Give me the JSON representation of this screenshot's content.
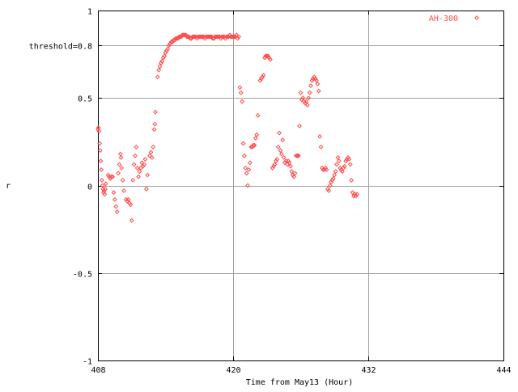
{
  "chart_data": {
    "type": "scatter",
    "xlabel": "Time from May13 (Hour)",
    "ylabel": "r",
    "xlim": [
      408,
      444
    ],
    "ylim": [
      -1,
      1
    ],
    "xticks": [
      408,
      420,
      432,
      444
    ],
    "yticks": [
      {
        "value": -1,
        "label": "-1"
      },
      {
        "value": -0.5,
        "label": "-0.5"
      },
      {
        "value": 0,
        "label": "0"
      },
      {
        "value": 0.5,
        "label": "0.5"
      },
      {
        "value": 0.8,
        "label": "threshold=0.8"
      },
      {
        "value": 1,
        "label": "1"
      }
    ],
    "grid": true,
    "legend_position": "top-right",
    "series": [
      {
        "name": "AH-300",
        "color": "#ff4a4a",
        "marker": "diamond",
        "points": [
          [
            408.0,
            0.32
          ],
          [
            408.05,
            0.33
          ],
          [
            408.1,
            0.31
          ],
          [
            408.15,
            0.24
          ],
          [
            408.2,
            0.2
          ],
          [
            408.25,
            0.14
          ],
          [
            408.3,
            0.09
          ],
          [
            408.35,
            0.03
          ],
          [
            408.4,
            0.0
          ],
          [
            408.45,
            -0.02
          ],
          [
            408.5,
            -0.04
          ],
          [
            408.55,
            -0.03
          ],
          [
            408.6,
            -0.05
          ],
          [
            408.65,
            -0.02
          ],
          [
            408.7,
            0.01
          ],
          [
            408.9,
            0.06
          ],
          [
            409.0,
            0.05
          ],
          [
            409.1,
            0.04
          ],
          [
            409.2,
            0.05
          ],
          [
            409.3,
            0.05
          ],
          [
            409.4,
            -0.04
          ],
          [
            409.5,
            -0.08
          ],
          [
            409.6,
            -0.12
          ],
          [
            409.7,
            -0.15
          ],
          [
            409.8,
            0.07
          ],
          [
            409.9,
            0.12
          ],
          [
            410.0,
            0.18
          ],
          [
            410.05,
            0.16
          ],
          [
            410.1,
            0.1
          ],
          [
            410.2,
            0.03
          ],
          [
            410.3,
            -0.03
          ],
          [
            410.5,
            -0.08
          ],
          [
            410.6,
            -0.09
          ],
          [
            410.7,
            -0.08
          ],
          [
            410.8,
            -0.1
          ],
          [
            410.9,
            -0.11
          ],
          [
            411.0,
            -0.2
          ],
          [
            411.1,
            0.03
          ],
          [
            411.2,
            0.12
          ],
          [
            411.3,
            0.17
          ],
          [
            411.4,
            0.22
          ],
          [
            411.5,
            0.1
          ],
          [
            411.6,
            0.05
          ],
          [
            411.7,
            0.08
          ],
          [
            411.8,
            0.1
          ],
          [
            411.9,
            0.13
          ],
          [
            412.0,
            0.11
          ],
          [
            412.1,
            0.12
          ],
          [
            412.2,
            0.15
          ],
          [
            412.3,
            -0.02
          ],
          [
            412.4,
            0.06
          ],
          [
            412.6,
            0.17
          ],
          [
            412.7,
            0.19
          ],
          [
            412.8,
            0.16
          ],
          [
            412.9,
            0.22
          ],
          [
            413.0,
            0.32
          ],
          [
            413.05,
            0.35
          ],
          [
            413.1,
            0.42
          ],
          [
            413.3,
            0.62
          ],
          [
            413.4,
            0.66
          ],
          [
            413.5,
            0.68
          ],
          [
            413.6,
            0.7
          ],
          [
            413.7,
            0.71
          ],
          [
            413.8,
            0.73
          ],
          [
            413.9,
            0.74
          ],
          [
            414.0,
            0.76
          ],
          [
            414.1,
            0.77
          ],
          [
            414.2,
            0.78
          ],
          [
            414.3,
            0.8
          ],
          [
            414.4,
            0.81
          ],
          [
            414.5,
            0.82
          ],
          [
            414.6,
            0.82
          ],
          [
            414.7,
            0.83
          ],
          [
            414.8,
            0.83
          ],
          [
            414.9,
            0.84
          ],
          [
            415.0,
            0.84
          ],
          [
            415.1,
            0.84
          ],
          [
            415.2,
            0.85
          ],
          [
            415.3,
            0.85
          ],
          [
            415.4,
            0.85
          ],
          [
            415.5,
            0.86
          ],
          [
            415.6,
            0.86
          ],
          [
            415.7,
            0.86
          ],
          [
            415.8,
            0.86
          ],
          [
            415.9,
            0.85
          ],
          [
            416.0,
            0.85
          ],
          [
            416.1,
            0.85
          ],
          [
            416.2,
            0.84
          ],
          [
            416.3,
            0.84
          ],
          [
            416.4,
            0.85
          ],
          [
            416.5,
            0.85
          ],
          [
            416.6,
            0.85
          ],
          [
            416.7,
            0.85
          ],
          [
            416.8,
            0.84
          ],
          [
            416.9,
            0.85
          ],
          [
            417.0,
            0.85
          ],
          [
            417.1,
            0.85
          ],
          [
            417.2,
            0.85
          ],
          [
            417.3,
            0.85
          ],
          [
            417.4,
            0.85
          ],
          [
            417.5,
            0.84
          ],
          [
            417.6,
            0.85
          ],
          [
            417.7,
            0.85
          ],
          [
            417.8,
            0.85
          ],
          [
            417.9,
            0.85
          ],
          [
            418.0,
            0.85
          ],
          [
            418.1,
            0.85
          ],
          [
            418.2,
            0.84
          ],
          [
            418.3,
            0.84
          ],
          [
            418.4,
            0.85
          ],
          [
            418.5,
            0.85
          ],
          [
            418.6,
            0.85
          ],
          [
            418.7,
            0.85
          ],
          [
            418.8,
            0.85
          ],
          [
            418.9,
            0.84
          ],
          [
            419.0,
            0.85
          ],
          [
            419.1,
            0.85
          ],
          [
            419.2,
            0.85
          ],
          [
            419.3,
            0.84
          ],
          [
            419.4,
            0.85
          ],
          [
            419.5,
            0.85
          ],
          [
            419.6,
            0.85
          ],
          [
            419.7,
            0.86
          ],
          [
            419.8,
            0.85
          ],
          [
            419.9,
            0.85
          ],
          [
            420.0,
            0.85
          ],
          [
            420.1,
            0.85
          ],
          [
            420.2,
            0.85
          ],
          [
            420.3,
            0.86
          ],
          [
            420.4,
            0.84
          ],
          [
            420.5,
            0.85
          ],
          [
            420.6,
            0.56
          ],
          [
            420.7,
            0.53
          ],
          [
            420.8,
            0.48
          ],
          [
            420.9,
            0.24
          ],
          [
            421.0,
            0.17
          ],
          [
            421.1,
            0.1
          ],
          [
            421.2,
            0.07
          ],
          [
            421.3,
            0.0
          ],
          [
            421.4,
            0.09
          ],
          [
            421.5,
            0.13
          ],
          [
            421.6,
            0.22
          ],
          [
            421.7,
            0.22
          ],
          [
            421.8,
            0.23
          ],
          [
            421.9,
            0.23
          ],
          [
            422.0,
            0.27
          ],
          [
            422.1,
            0.29
          ],
          [
            422.2,
            0.4
          ],
          [
            422.4,
            0.6
          ],
          [
            422.5,
            0.61
          ],
          [
            422.6,
            0.62
          ],
          [
            422.7,
            0.63
          ],
          [
            422.8,
            0.73
          ],
          [
            422.9,
            0.74
          ],
          [
            423.0,
            0.74
          ],
          [
            423.1,
            0.74
          ],
          [
            423.2,
            0.73
          ],
          [
            423.3,
            0.72
          ],
          [
            423.5,
            0.1
          ],
          [
            423.6,
            0.11
          ],
          [
            423.7,
            0.12
          ],
          [
            423.8,
            0.14
          ],
          [
            423.9,
            0.15
          ],
          [
            424.0,
            0.22
          ],
          [
            424.1,
            0.3
          ],
          [
            424.2,
            0.2
          ],
          [
            424.3,
            0.18
          ],
          [
            424.4,
            0.26
          ],
          [
            424.5,
            0.16
          ],
          [
            424.6,
            0.13
          ],
          [
            424.7,
            0.14
          ],
          [
            424.8,
            0.12
          ],
          [
            424.9,
            0.14
          ],
          [
            425.0,
            0.13
          ],
          [
            425.1,
            0.11
          ],
          [
            425.2,
            0.08
          ],
          [
            425.3,
            0.06
          ],
          [
            425.4,
            0.05
          ],
          [
            425.5,
            0.07
          ],
          [
            425.6,
            0.17
          ],
          [
            425.7,
            0.17
          ],
          [
            425.8,
            0.17
          ],
          [
            425.9,
            0.34
          ],
          [
            426.0,
            0.53
          ],
          [
            426.1,
            0.49
          ],
          [
            426.2,
            0.5
          ],
          [
            426.3,
            0.48
          ],
          [
            426.4,
            0.47
          ],
          [
            426.5,
            0.48
          ],
          [
            426.6,
            0.46
          ],
          [
            426.7,
            0.5
          ],
          [
            426.8,
            0.53
          ],
          [
            426.9,
            0.57
          ],
          [
            427.0,
            0.6
          ],
          [
            427.1,
            0.61
          ],
          [
            427.2,
            0.62
          ],
          [
            427.3,
            0.61
          ],
          [
            427.4,
            0.6
          ],
          [
            427.5,
            0.58
          ],
          [
            427.6,
            0.54
          ],
          [
            427.7,
            0.28
          ],
          [
            427.8,
            0.22
          ],
          [
            427.9,
            0.1
          ],
          [
            428.0,
            0.09
          ],
          [
            428.1,
            0.09
          ],
          [
            428.2,
            0.1
          ],
          [
            428.3,
            0.09
          ],
          [
            428.4,
            -0.02
          ],
          [
            428.5,
            -0.03
          ],
          [
            428.6,
            0.0
          ],
          [
            428.7,
            0.02
          ],
          [
            428.8,
            0.03
          ],
          [
            428.9,
            0.04
          ],
          [
            429.0,
            0.06
          ],
          [
            429.1,
            0.08
          ],
          [
            429.2,
            0.12
          ],
          [
            429.3,
            0.16
          ],
          [
            429.4,
            0.14
          ],
          [
            429.5,
            0.1
          ],
          [
            429.6,
            0.09
          ],
          [
            429.7,
            0.08
          ],
          [
            429.8,
            0.1
          ],
          [
            429.9,
            0.11
          ],
          [
            430.0,
            0.14
          ],
          [
            430.1,
            0.15
          ],
          [
            430.2,
            0.16
          ],
          [
            430.3,
            0.15
          ],
          [
            430.4,
            0.12
          ],
          [
            430.5,
            0.03
          ],
          [
            430.6,
            -0.04
          ],
          [
            430.7,
            -0.06
          ],
          [
            430.8,
            -0.05
          ],
          [
            430.9,
            -0.06
          ],
          [
            431.0,
            -0.05
          ]
        ]
      }
    ]
  }
}
